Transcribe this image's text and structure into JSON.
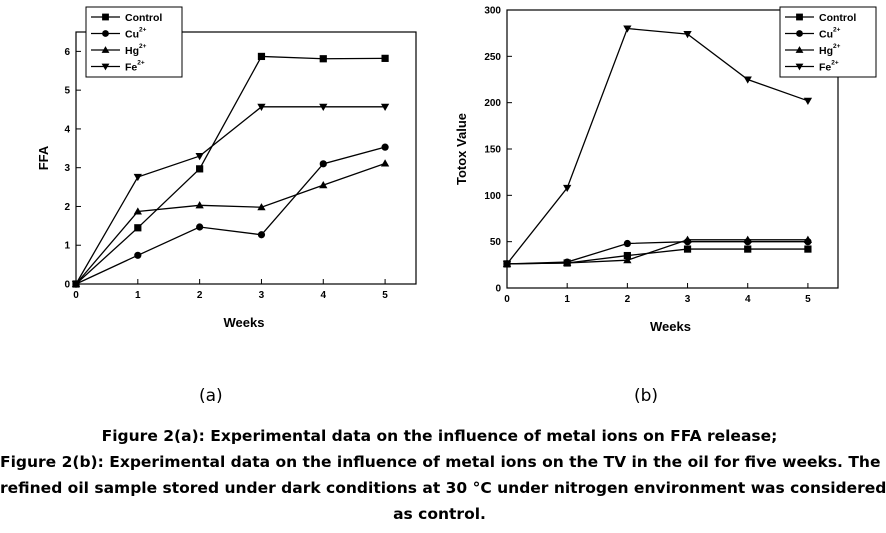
{
  "chart_data": [
    {
      "type": "line",
      "panel_label": "(a)",
      "title": "",
      "xlabel": "Weeks",
      "ylabel": "FFA",
      "xlim": [
        0,
        5.5
      ],
      "ylim": [
        0,
        6.5
      ],
      "xticks": [
        0,
        1,
        2,
        3,
        4,
        5
      ],
      "yticks": [
        0,
        1,
        2,
        3,
        4,
        5,
        6
      ],
      "legend_position": "top-left",
      "x": [
        0,
        1,
        2,
        3,
        4,
        5
      ],
      "series": [
        {
          "name": "Control",
          "sup": "",
          "marker": "square",
          "values": [
            0,
            1.45,
            2.97,
            5.87,
            5.81,
            5.82
          ]
        },
        {
          "name": "Cu",
          "sup": "2+",
          "marker": "circle",
          "values": [
            0,
            0.74,
            1.47,
            1.27,
            3.1,
            3.53
          ]
        },
        {
          "name": "Hg",
          "sup": "2+",
          "marker": "triangle-up",
          "values": [
            0,
            1.87,
            2.03,
            1.98,
            2.55,
            3.11
          ]
        },
        {
          "name": "Fe",
          "sup": "2+",
          "marker": "triangle-down",
          "values": [
            0,
            2.76,
            3.3,
            4.57,
            4.57,
            4.57
          ]
        }
      ]
    },
    {
      "type": "line",
      "panel_label": "(b)",
      "title": "",
      "xlabel": "Weeks",
      "ylabel": "Totox Value",
      "xlim": [
        0,
        5.5
      ],
      "ylim": [
        0,
        300
      ],
      "xticks": [
        0,
        1,
        2,
        3,
        4,
        5
      ],
      "yticks": [
        0,
        50,
        100,
        150,
        200,
        250,
        300
      ],
      "legend_position": "top-right",
      "x": [
        0,
        1,
        2,
        3,
        4,
        5
      ],
      "series": [
        {
          "name": "Control",
          "sup": "",
          "marker": "square",
          "values": [
            26,
            27,
            35,
            42,
            42,
            42
          ]
        },
        {
          "name": "Cu",
          "sup": "2+",
          "marker": "circle",
          "values": [
            26,
            28,
            48,
            50,
            50,
            50
          ]
        },
        {
          "name": "Hg",
          "sup": "2+",
          "marker": "triangle-up",
          "values": [
            26,
            27,
            30,
            52,
            52,
            52
          ]
        },
        {
          "name": "Fe",
          "sup": "2+",
          "marker": "triangle-down",
          "values": [
            26,
            108,
            280,
            274,
            225,
            202
          ]
        }
      ]
    }
  ],
  "caption": {
    "line1": "Figure 2(a): Experimental data on the influence of metal ions on FFA release;",
    "line2": "Figure 2(b): Experimental data on the influence of metal ions on the TV in the oil for five weeks. The",
    "line3": "refined oil sample stored under dark conditions at 30 °C under nitrogen environment was considered",
    "line4": "as control."
  }
}
